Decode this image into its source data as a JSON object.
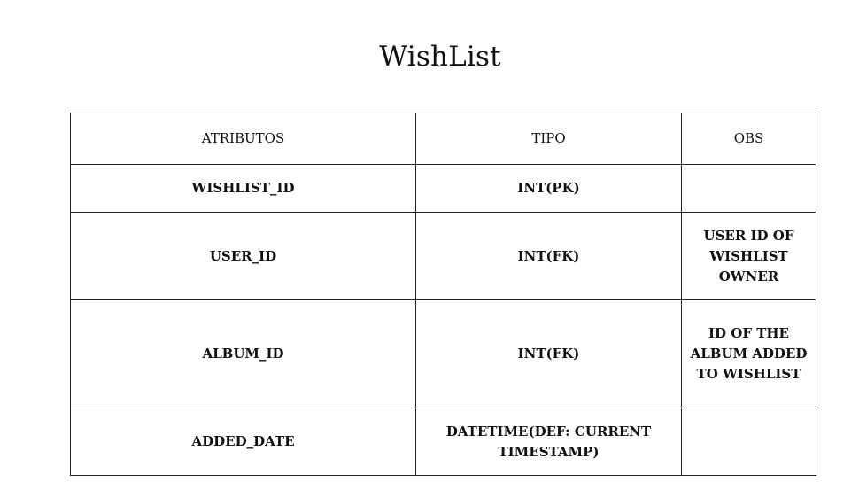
{
  "title": "WishList",
  "table": {
    "headers": {
      "attribute": "ATRIBUTOS",
      "type": "TIPO",
      "notes": "OBS"
    },
    "rows": [
      {
        "attribute": "WISHLIST_ID",
        "type": "INT(PK)",
        "notes": ""
      },
      {
        "attribute": "USER_ID",
        "type": "INT(FK)",
        "notes": "USER ID OF WISHLIST OWNER"
      },
      {
        "attribute": "ALBUM_ID",
        "type": "INT(FK)",
        "notes": "ID OF THE ALBUM ADDED TO WISHLIST"
      },
      {
        "attribute": "ADDED_DATE",
        "type": "DATETIME(DEF: CURRENT TIMESTAMP)",
        "notes": ""
      }
    ]
  }
}
